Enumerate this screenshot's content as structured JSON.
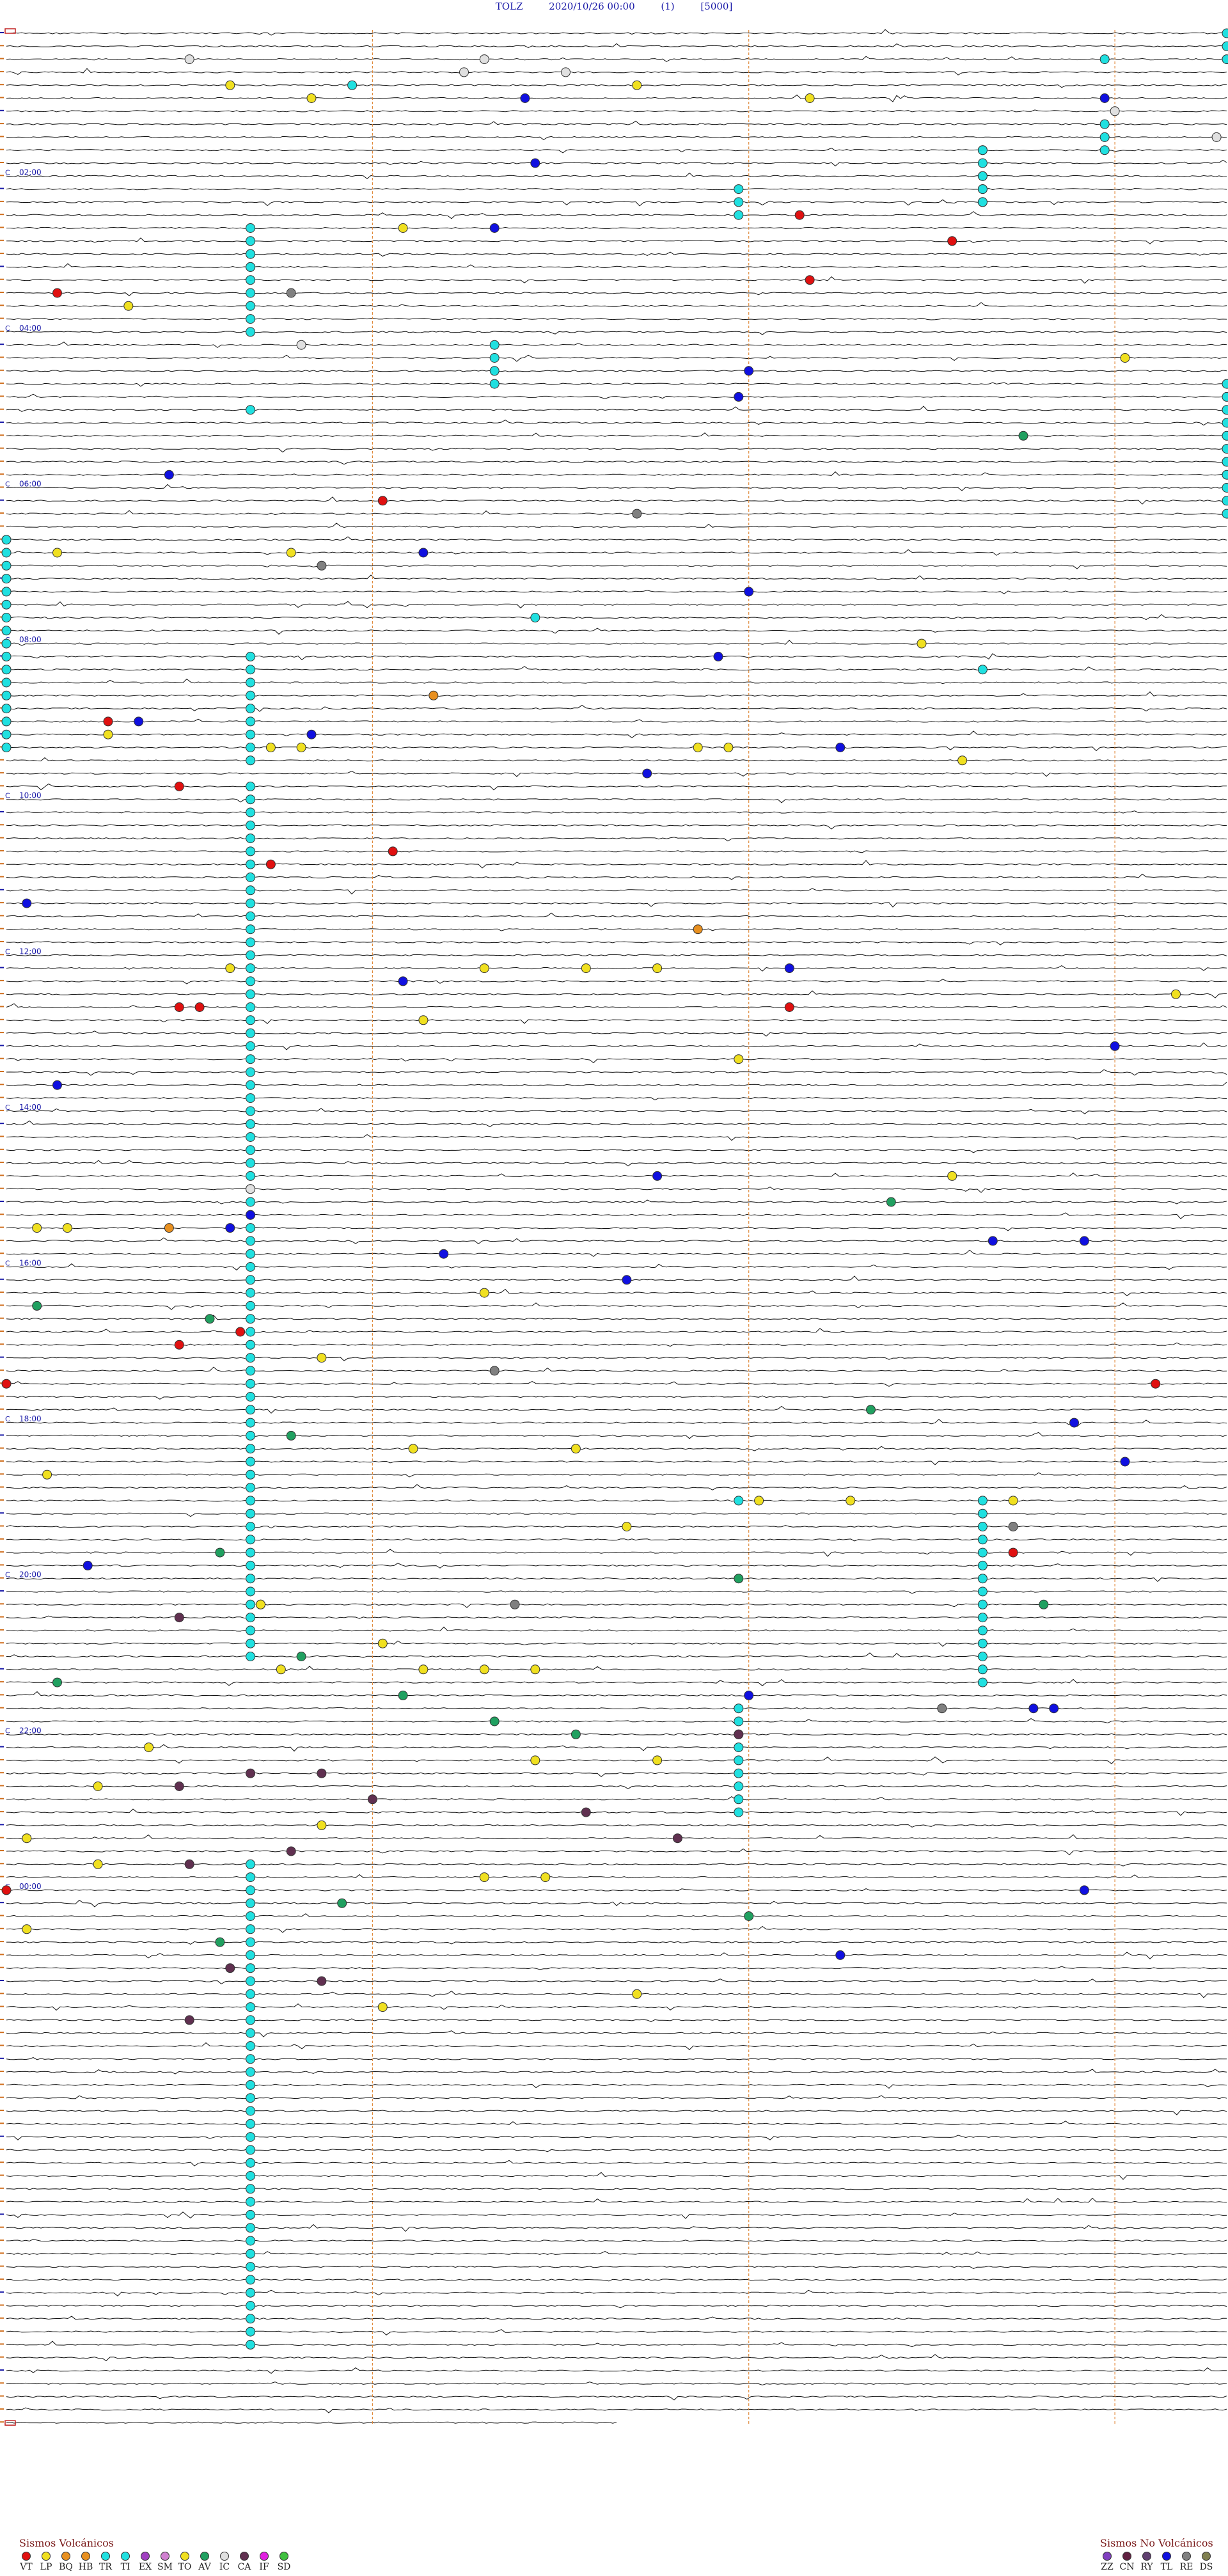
{
  "header": {
    "station": "TOLZ",
    "datetime": "2020/10/26 00:00",
    "component": "(1)",
    "scale": "[5000]"
  },
  "chart_data": {
    "type": "scatter",
    "title": "TOLZ 2020/10/26 00:00 (1) [5000]",
    "description_kind": "helicorder",
    "time_labels": [
      "02:00",
      "04:00",
      "06:00",
      "08:00",
      "10:00",
      "12:00",
      "14:00",
      "16:00",
      "18:00",
      "20:00",
      "22:00",
      "00:00"
    ],
    "hour_marker": "C",
    "trace_count": 185,
    "vertical_markers_color": "#e08a3c",
    "event_types": {
      "VT": "#e01010",
      "LP": "#f0e020",
      "BQ": "#e89020",
      "HB": "#e89020",
      "TR": "#20e0e0",
      "TI": "#20e0e0",
      "EX": "#a040c0",
      "SM": "#d080d0",
      "TO": "#f0e020",
      "AV": "#20a060",
      "IC": "#e0e0e0",
      "CA": "#603050",
      "IF": "#e020e0",
      "SD": "#40c040",
      "ZZ": "#8040c0",
      "CN": "#602040",
      "RY": "#604070",
      "TL": "#1010e0",
      "RE": "#808080",
      "DS": "#808050"
    },
    "events": [
      {
        "trace": 2,
        "minute": 18,
        "type": "IC"
      },
      {
        "trace": 2,
        "minute": 47,
        "type": "IC"
      },
      {
        "trace": 2,
        "minute": 108,
        "type": "TR"
      },
      {
        "trace": 3,
        "minute": 45,
        "type": "IC"
      },
      {
        "trace": 3,
        "minute": 55,
        "type": "IC"
      },
      {
        "trace": 4,
        "minute": 22,
        "type": "LP"
      },
      {
        "trace": 4,
        "minute": 34,
        "type": "TR"
      },
      {
        "trace": 4,
        "minute": 62,
        "type": "LP"
      },
      {
        "trace": 5,
        "minute": 51,
        "type": "TL"
      },
      {
        "trace": 5,
        "minute": 30,
        "type": "LP"
      },
      {
        "trace": 5,
        "minute": 79,
        "type": "LP"
      },
      {
        "trace": 5,
        "minute": 108,
        "type": "TL"
      },
      {
        "trace": 6,
        "minute": 109,
        "type": "IC"
      },
      {
        "trace": 7,
        "minute": 108,
        "type": "TR"
      },
      {
        "trace": 8,
        "minute": 108,
        "type": "TR"
      },
      {
        "trace": 8,
        "minute": 119,
        "type": "IC"
      },
      {
        "trace": 9,
        "minute": 108,
        "type": "TR"
      },
      {
        "trace": 9,
        "minute": 96,
        "type": "TR"
      },
      {
        "trace": 10,
        "minute": 52,
        "type": "TL"
      },
      {
        "trace": 11,
        "minute": 96,
        "type": "TR"
      },
      {
        "trace": 12,
        "minute": 96,
        "type": "TR"
      },
      {
        "trace": 13,
        "minute": 96,
        "type": "TR"
      },
      {
        "trace": 14,
        "minute": 78,
        "type": "VT"
      },
      {
        "trace": 15,
        "minute": 39,
        "type": "LP"
      },
      {
        "trace": 15,
        "minute": 48,
        "type": "TL"
      },
      {
        "trace": 16,
        "minute": 93,
        "type": "VT"
      },
      {
        "trace": 17,
        "minute": 24,
        "type": "TR"
      },
      {
        "trace": 18,
        "minute": 24,
        "type": "TR"
      },
      {
        "trace": 19,
        "minute": 79,
        "type": "VT"
      },
      {
        "trace": 20,
        "minute": 5,
        "type": "VT"
      },
      {
        "trace": 20,
        "minute": 28,
        "type": "RE"
      },
      {
        "trace": 21,
        "minute": 12,
        "type": "LP"
      },
      {
        "trace": 23,
        "minute": 24,
        "type": "TR"
      },
      {
        "trace": 24,
        "minute": 29,
        "type": "IC"
      },
      {
        "trace": 25,
        "minute": 110,
        "type": "LP"
      },
      {
        "trace": 26,
        "minute": 73,
        "type": "TL"
      },
      {
        "trace": 27,
        "minute": 48,
        "type": "TR"
      },
      {
        "trace": 28,
        "minute": 72,
        "type": "TL"
      },
      {
        "trace": 29,
        "minute": 24,
        "type": "TR"
      },
      {
        "trace": 31,
        "minute": 100,
        "type": "AV"
      },
      {
        "trace": 33,
        "minute": 120,
        "type": "TR"
      },
      {
        "trace": 34,
        "minute": 16,
        "type": "TL"
      },
      {
        "trace": 36,
        "minute": 37,
        "type": "VT"
      },
      {
        "trace": 37,
        "minute": 62,
        "type": "RE"
      },
      {
        "trace": 40,
        "minute": 5,
        "type": "LP"
      },
      {
        "trace": 40,
        "minute": 28,
        "type": "LP"
      },
      {
        "trace": 40,
        "minute": 41,
        "type": "TL"
      },
      {
        "trace": 41,
        "minute": 31,
        "type": "RE"
      },
      {
        "trace": 43,
        "minute": 73,
        "type": "TL"
      },
      {
        "trace": 45,
        "minute": 52,
        "type": "TR"
      },
      {
        "trace": 47,
        "minute": 90,
        "type": "LP"
      },
      {
        "trace": 48,
        "minute": 70,
        "type": "TL"
      },
      {
        "trace": 49,
        "minute": 96,
        "type": "TR"
      },
      {
        "trace": 51,
        "minute": 42,
        "type": "BQ"
      },
      {
        "trace": 53,
        "minute": 10,
        "type": "VT"
      },
      {
        "trace": 53,
        "minute": 13,
        "type": "TL"
      },
      {
        "trace": 54,
        "minute": 10,
        "type": "LP"
      },
      {
        "trace": 54,
        "minute": 30,
        "type": "TL"
      },
      {
        "trace": 55,
        "minute": 26,
        "type": "LP"
      },
      {
        "trace": 55,
        "minute": 29,
        "type": "LP"
      },
      {
        "trace": 55,
        "minute": 68,
        "type": "LP"
      },
      {
        "trace": 55,
        "minute": 71,
        "type": "LP"
      },
      {
        "trace": 55,
        "minute": 82,
        "type": "TL"
      },
      {
        "trace": 56,
        "minute": 94,
        "type": "LP"
      },
      {
        "trace": 57,
        "minute": 63,
        "type": "TL"
      },
      {
        "trace": 58,
        "minute": 17,
        "type": "VT"
      },
      {
        "trace": 63,
        "minute": 38,
        "type": "VT"
      },
      {
        "trace": 64,
        "minute": 26,
        "type": "VT"
      },
      {
        "trace": 67,
        "minute": 2,
        "type": "TL"
      },
      {
        "trace": 69,
        "minute": 68,
        "type": "BQ"
      },
      {
        "trace": 72,
        "minute": 22,
        "type": "LP"
      },
      {
        "trace": 72,
        "minute": 47,
        "type": "LP"
      },
      {
        "trace": 72,
        "minute": 57,
        "type": "LP"
      },
      {
        "trace": 72,
        "minute": 64,
        "type": "LP"
      },
      {
        "trace": 72,
        "minute": 77,
        "type": "TL"
      },
      {
        "trace": 73,
        "minute": 39,
        "type": "TL"
      },
      {
        "trace": 74,
        "minute": 115,
        "type": "LP"
      },
      {
        "trace": 75,
        "minute": 17,
        "type": "VT"
      },
      {
        "trace": 75,
        "minute": 19,
        "type": "VT"
      },
      {
        "trace": 75,
        "minute": 77,
        "type": "VT"
      },
      {
        "trace": 76,
        "minute": 41,
        "type": "LP"
      },
      {
        "trace": 78,
        "minute": 109,
        "type": "TL"
      },
      {
        "trace": 79,
        "minute": 72,
        "type": "LP"
      },
      {
        "trace": 81,
        "minute": 5,
        "type": "TL"
      },
      {
        "trace": 88,
        "minute": 64,
        "type": "TL"
      },
      {
        "trace": 88,
        "minute": 93,
        "type": "LP"
      },
      {
        "trace": 89,
        "minute": 24,
        "type": "IC"
      },
      {
        "trace": 90,
        "minute": 87,
        "type": "AV"
      },
      {
        "trace": 91,
        "minute": 24,
        "type": "TL"
      },
      {
        "trace": 92,
        "minute": 3,
        "type": "LP"
      },
      {
        "trace": 92,
        "minute": 6,
        "type": "LP"
      },
      {
        "trace": 92,
        "minute": 16,
        "type": "BQ"
      },
      {
        "trace": 92,
        "minute": 22,
        "type": "TL"
      },
      {
        "trace": 93,
        "minute": 97,
        "type": "TL"
      },
      {
        "trace": 93,
        "minute": 106,
        "type": "TL"
      },
      {
        "trace": 94,
        "minute": 43,
        "type": "TL"
      },
      {
        "trace": 96,
        "minute": 61,
        "type": "TL"
      },
      {
        "trace": 97,
        "minute": 47,
        "type": "LP"
      },
      {
        "trace": 98,
        "minute": 3,
        "type": "AV"
      },
      {
        "trace": 99,
        "minute": 20,
        "type": "AV"
      },
      {
        "trace": 100,
        "minute": 23,
        "type": "VT"
      },
      {
        "trace": 101,
        "minute": 17,
        "type": "VT"
      },
      {
        "trace": 102,
        "minute": 31,
        "type": "LP"
      },
      {
        "trace": 103,
        "minute": 48,
        "type": "RE"
      },
      {
        "trace": 104,
        "minute": 113,
        "type": "VT"
      },
      {
        "trace": 104,
        "minute": 0,
        "type": "VT"
      },
      {
        "trace": 106,
        "minute": 85,
        "type": "AV"
      },
      {
        "trace": 107,
        "minute": 105,
        "type": "TL"
      },
      {
        "trace": 108,
        "minute": 28,
        "type": "AV"
      },
      {
        "trace": 109,
        "minute": 56,
        "type": "LP"
      },
      {
        "trace": 109,
        "minute": 40,
        "type": "LP"
      },
      {
        "trace": 110,
        "minute": 110,
        "type": "TL"
      },
      {
        "trace": 111,
        "minute": 4,
        "type": "LP"
      },
      {
        "trace": 113,
        "minute": 72,
        "type": "TR"
      },
      {
        "trace": 113,
        "minute": 74,
        "type": "LP"
      },
      {
        "trace": 113,
        "minute": 83,
        "type": "LP"
      },
      {
        "trace": 113,
        "minute": 99,
        "type": "LP"
      },
      {
        "trace": 115,
        "minute": 61,
        "type": "LP"
      },
      {
        "trace": 115,
        "minute": 99,
        "type": "RE"
      },
      {
        "trace": 117,
        "minute": 21,
        "type": "AV"
      },
      {
        "trace": 117,
        "minute": 99,
        "type": "VT"
      },
      {
        "trace": 118,
        "minute": 8,
        "type": "TL"
      },
      {
        "trace": 119,
        "minute": 72,
        "type": "AV"
      },
      {
        "trace": 121,
        "minute": 25,
        "type": "LP"
      },
      {
        "trace": 121,
        "minute": 25,
        "type": "LP"
      },
      {
        "trace": 121,
        "minute": 50,
        "type": "RE"
      },
      {
        "trace": 121,
        "minute": 102,
        "type": "AV"
      },
      {
        "trace": 122,
        "minute": 17,
        "type": "CA"
      },
      {
        "trace": 124,
        "minute": 37,
        "type": "LP"
      },
      {
        "trace": 125,
        "minute": 29,
        "type": "AV"
      },
      {
        "trace": 126,
        "minute": 27,
        "type": "LP"
      },
      {
        "trace": 126,
        "minute": 41,
        "type": "LP"
      },
      {
        "trace": 126,
        "minute": 47,
        "type": "LP"
      },
      {
        "trace": 126,
        "minute": 52,
        "type": "LP"
      },
      {
        "trace": 127,
        "minute": 5,
        "type": "AV"
      },
      {
        "trace": 128,
        "minute": 39,
        "type": "AV"
      },
      {
        "trace": 128,
        "minute": 73,
        "type": "TL"
      },
      {
        "trace": 129,
        "minute": 92,
        "type": "RE"
      },
      {
        "trace": 129,
        "minute": 103,
        "type": "TL"
      },
      {
        "trace": 129,
        "minute": 101,
        "type": "TL"
      },
      {
        "trace": 130,
        "minute": 48,
        "type": "AV"
      },
      {
        "trace": 131,
        "minute": 56,
        "type": "AV"
      },
      {
        "trace": 131,
        "minute": 72,
        "type": "CA"
      },
      {
        "trace": 132,
        "minute": 14,
        "type": "LP"
      },
      {
        "trace": 133,
        "minute": 52,
        "type": "LP"
      },
      {
        "trace": 133,
        "minute": 64,
        "type": "LP"
      },
      {
        "trace": 134,
        "minute": 24,
        "type": "CA"
      },
      {
        "trace": 134,
        "minute": 31,
        "type": "CA"
      },
      {
        "trace": 135,
        "minute": 9,
        "type": "LP"
      },
      {
        "trace": 135,
        "minute": 17,
        "type": "CA"
      },
      {
        "trace": 136,
        "minute": 36,
        "type": "CA"
      },
      {
        "trace": 137,
        "minute": 57,
        "type": "CA"
      },
      {
        "trace": 138,
        "minute": 31,
        "type": "LP"
      },
      {
        "trace": 139,
        "minute": 2,
        "type": "LP"
      },
      {
        "trace": 139,
        "minute": 66,
        "type": "CA"
      },
      {
        "trace": 140,
        "minute": 28,
        "type": "CA"
      },
      {
        "trace": 141,
        "minute": 18,
        "type": "CA"
      },
      {
        "trace": 141,
        "minute": 9,
        "type": "LP"
      },
      {
        "trace": 142,
        "minute": 53,
        "type": "LP"
      },
      {
        "trace": 142,
        "minute": 47,
        "type": "LP"
      },
      {
        "trace": 143,
        "minute": 0,
        "type": "VT"
      },
      {
        "trace": 143,
        "minute": 106,
        "type": "TL"
      },
      {
        "trace": 144,
        "minute": 33,
        "type": "AV"
      },
      {
        "trace": 145,
        "minute": 73,
        "type": "AV"
      },
      {
        "trace": 146,
        "minute": 2,
        "type": "LP"
      },
      {
        "trace": 147,
        "minute": 21,
        "type": "AV"
      },
      {
        "trace": 148,
        "minute": 82,
        "type": "TL"
      },
      {
        "trace": 149,
        "minute": 22,
        "type": "CA"
      },
      {
        "trace": 150,
        "minute": 31,
        "type": "CA"
      },
      {
        "trace": 151,
        "minute": 62,
        "type": "LP"
      },
      {
        "trace": 152,
        "minute": 37,
        "type": "LP"
      },
      {
        "trace": 153,
        "minute": 18,
        "type": "CA"
      }
    ],
    "trace_runs": [
      {
        "minute": 24,
        "from": 15,
        "to": 22
      },
      {
        "minute": 24,
        "from": 48,
        "to": 56
      },
      {
        "minute": 24,
        "from": 58,
        "to": 125
      },
      {
        "minute": 72,
        "from": 12,
        "to": 14
      },
      {
        "minute": 96,
        "from": 9,
        "to": 13
      },
      {
        "minute": 96,
        "from": 113,
        "to": 127
      },
      {
        "minute": 72,
        "from": 129,
        "to": 137
      },
      {
        "minute": 24,
        "from": 141,
        "to": 178
      },
      {
        "minute": 48,
        "from": 24,
        "to": 26
      },
      {
        "minute": 120,
        "from": 0,
        "to": 2
      },
      {
        "minute": 120,
        "from": 27,
        "to": 37
      },
      {
        "minute": 0,
        "from": 39,
        "to": 55
      }
    ]
  },
  "legend_volcanic": {
    "title": "Sismos Volcánicos",
    "items": [
      {
        "code": "VT",
        "color": "#e01010"
      },
      {
        "code": "LP",
        "color": "#f0e020"
      },
      {
        "code": "BQ",
        "color": "#e89020"
      },
      {
        "code": "HB",
        "color": "#e89020"
      },
      {
        "code": "TR",
        "color": "#20e0e0"
      },
      {
        "code": "TI",
        "color": "#20e0e0"
      },
      {
        "code": "EX",
        "color": "#a040c0"
      },
      {
        "code": "SM",
        "color": "#d080d0"
      },
      {
        "code": "TO",
        "color": "#f0e020"
      },
      {
        "code": "AV",
        "color": "#20a060"
      },
      {
        "code": "IC",
        "color": "#e0e0e0"
      },
      {
        "code": "CA",
        "color": "#603050"
      },
      {
        "code": "IF",
        "color": "#e020e0"
      },
      {
        "code": "SD",
        "color": "#40c040"
      }
    ]
  },
  "legend_nonvolcanic": {
    "title": "Sismos No Volcánicos",
    "items": [
      {
        "code": "ZZ",
        "color": "#8040c0"
      },
      {
        "code": "CN",
        "color": "#602040"
      },
      {
        "code": "RY",
        "color": "#604070"
      },
      {
        "code": "TL",
        "color": "#1010e0"
      },
      {
        "code": "RE",
        "color": "#808080"
      },
      {
        "code": "DS",
        "color": "#808050"
      }
    ]
  }
}
